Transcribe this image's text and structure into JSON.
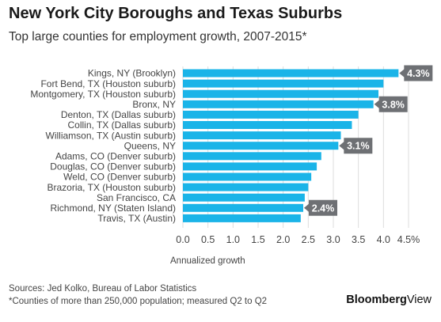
{
  "header": {
    "title": "New York City Boroughs and Texas Suburbs",
    "subtitle": "Top large counties for employment growth, 2007-2015*"
  },
  "footer": {
    "source": "Sources: Jed Kolko, Bureau of Labor Statistics",
    "note": "*Counties of more than 250,000 population; measured Q2 to Q2",
    "brand_bold": "Bloomberg",
    "brand_light": "View"
  },
  "colors": {
    "bar": "#1ab4e8",
    "callout": "#6e7074",
    "grid": "#dddddd"
  },
  "chart_data": {
    "type": "bar",
    "orientation": "horizontal",
    "title": "New York City Boroughs and Texas Suburbs",
    "subtitle": "Top large counties for employment growth, 2007-2015*",
    "xlabel": "Annualized growth",
    "ylabel": "",
    "xlim": [
      0,
      4.5
    ],
    "grid": true,
    "ticks": [
      "0.0",
      "0.5",
      "1.0",
      "1.5",
      "2.0",
      "2.5",
      "3.0",
      "3.5",
      "4.0",
      "4.5%"
    ],
    "tick_values": [
      0,
      0.5,
      1.0,
      1.5,
      2.0,
      2.5,
      3.0,
      3.5,
      4.0,
      4.5
    ],
    "categories": [
      "Kings, NY (Brooklyn)",
      "Fort Bend, TX (Houston suburb)",
      "Montgomery, TX (Houston suburb)",
      "Bronx, NY",
      "Denton, TX (Dallas suburb)",
      "Collin, TX (Dallas suburb)",
      "Williamson, TX (Austin suburb)",
      "Queens, NY",
      "Adams, CO (Denver suburb)",
      "Douglas, CO (Denver suburb)",
      "Weld, CO (Denver suburb)",
      "Brazoria, TX (Houston suburb)",
      "San Francisco, CA",
      "Richmond, NY (Staten Island)",
      "Travis, TX (Austin)"
    ],
    "values": [
      4.3,
      4.0,
      3.9,
      3.8,
      3.5,
      3.37,
      3.15,
      3.1,
      2.76,
      2.67,
      2.56,
      2.5,
      2.43,
      2.4,
      2.35
    ],
    "annotations": [
      {
        "index": 0,
        "label": "4.3%"
      },
      {
        "index": 3,
        "label": "3.8%"
      },
      {
        "index": 7,
        "label": "3.1%"
      },
      {
        "index": 13,
        "label": "2.4%"
      }
    ]
  }
}
